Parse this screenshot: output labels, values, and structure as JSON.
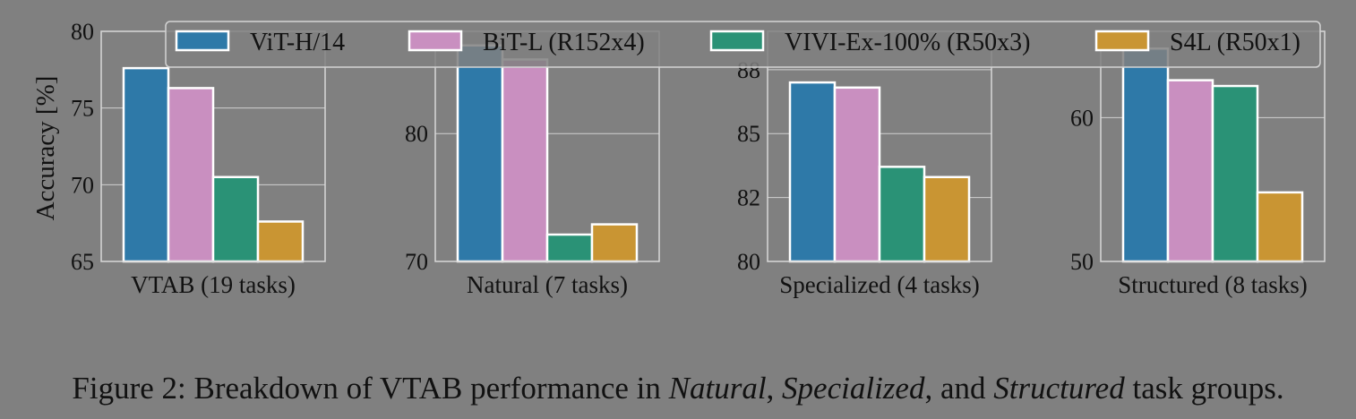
{
  "caption": {
    "prefix": "Figure 2: Breakdown of VTAB performance in ",
    "natural": "Natural",
    "sep1": ", ",
    "specialized": "Specialized",
    "sep2": ", and ",
    "structured": "Structured",
    "suffix": " task groups."
  },
  "legend_position": "top",
  "series_colors": {
    "ViT-H/14": "#2e79a8",
    "BiT-L (R152x4)": "#c98fc0",
    "VIVI-Ex-100% (R50x3)": "#2a9276",
    "S4L (R50x1)": "#c99533"
  },
  "chart_data": [
    {
      "type": "bar",
      "xlabel": "VTAB (19 tasks)",
      "ylabel": "Accuracy [%]",
      "ylim": [
        65,
        80
      ],
      "yticks": [
        65,
        70,
        75,
        80
      ],
      "grid": true,
      "series": [
        {
          "name": "ViT-H/14",
          "value": 77.6
        },
        {
          "name": "BiT-L (R152x4)",
          "value": 76.3
        },
        {
          "name": "VIVI-Ex-100% (R50x3)",
          "value": 70.5
        },
        {
          "name": "S4L (R50x1)",
          "value": 67.6
        }
      ]
    },
    {
      "type": "bar",
      "xlabel": "Natural (7 tasks)",
      "ylabel": "",
      "ylim": [
        70,
        88
      ],
      "yticks": [
        70,
        80
      ],
      "grid": true,
      "series": [
        {
          "name": "ViT-H/14",
          "value": 86.9
        },
        {
          "name": "BiT-L (R152x4)",
          "value": 85.8
        },
        {
          "name": "VIVI-Ex-100% (R50x3)",
          "value": 72.1
        },
        {
          "name": "S4L (R50x1)",
          "value": 72.9
        }
      ]
    },
    {
      "type": "bar",
      "xlabel": "Specialized (4 tasks)",
      "ylabel": "",
      "ylim": [
        80,
        89
      ],
      "yticks": [
        80,
        82.5,
        85,
        87.5
      ],
      "ytick_labels": [
        "80",
        "82",
        "85",
        "88"
      ],
      "grid": true,
      "series": [
        {
          "name": "ViT-H/14",
          "value": 87.0
        },
        {
          "name": "BiT-L (R152x4)",
          "value": 86.8
        },
        {
          "name": "VIVI-Ex-100% (R50x3)",
          "value": 83.7
        },
        {
          "name": "S4L (R50x1)",
          "value": 83.3
        }
      ]
    },
    {
      "type": "bar",
      "xlabel": "Structured (8 tasks)",
      "ylabel": "",
      "ylim": [
        50,
        66
      ],
      "yticks": [
        50,
        60
      ],
      "grid": true,
      "series": [
        {
          "name": "ViT-H/14",
          "value": 64.8
        },
        {
          "name": "BiT-L (R152x4)",
          "value": 62.6
        },
        {
          "name": "VIVI-Ex-100% (R50x3)",
          "value": 62.2
        },
        {
          "name": "S4L (R50x1)",
          "value": 54.8
        }
      ]
    }
  ]
}
